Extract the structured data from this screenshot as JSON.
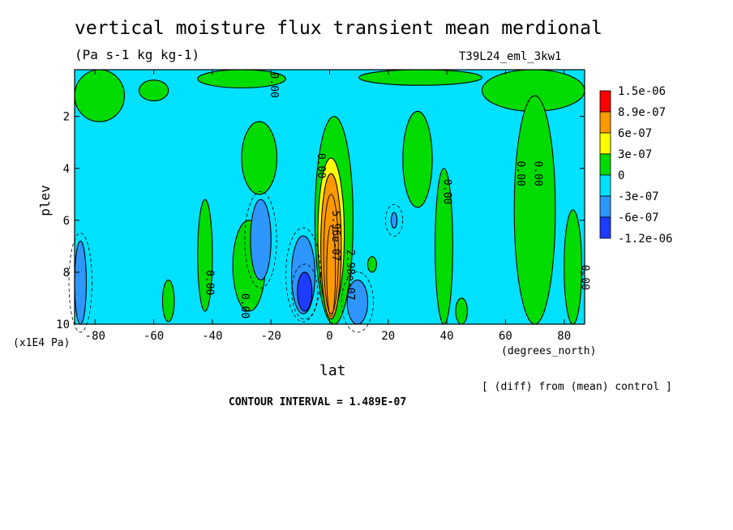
{
  "chart_data": {
    "type": "heatmap",
    "title": "vertical moisture flux transient mean merdional",
    "subtitle": "(Pa s-1 kg kg-1)",
    "run_id": "T39L24_eml_3kw1",
    "xlabel": "lat",
    "x_units": "(degrees_north)",
    "ylabel": "plev",
    "y_units": "(x1E4 Pa)",
    "x_ticks": [
      -80,
      -60,
      -40,
      -20,
      0,
      20,
      40,
      60,
      80
    ],
    "y_ticks": [
      2,
      4,
      6,
      8,
      10
    ],
    "xlim": [
      -87,
      87
    ],
    "ylim": [
      0.2,
      10
    ],
    "y_inverted": true,
    "note": "[ (diff) from (mean) control ]",
    "contour_interval": "CONTOUR INTERVAL = 1.489E-07",
    "legend": {
      "placement": "right",
      "labels": [
        "1.5e-06",
        "8.9e-07",
        "6e-07",
        "3e-07",
        "0",
        "-3e-07",
        "-6e-07",
        "-1.2e-06"
      ],
      "colors": [
        "#ff0000",
        "#ff9900",
        "#ffff00",
        "#00dc00",
        "#00e1ff",
        "#2d96ff",
        "#1e3cff"
      ]
    },
    "contour_labels": [
      "0.00",
      "0.00",
      "0.00",
      "0.00",
      "0.00",
      "0.00",
      "0.00",
      "0.00",
      "5.96e-07",
      "2.98e-07"
    ],
    "regions": [
      {
        "level": "green",
        "x": [
          -5,
          8
        ],
        "y": [
          2.0,
          10
        ]
      },
      {
        "level": "yellow",
        "x": [
          -4,
          5
        ],
        "y": [
          3.6,
          9.5
        ]
      },
      {
        "level": "orange",
        "x": [
          -3,
          4
        ],
        "y": [
          4.2,
          9.8
        ]
      },
      {
        "level": "green",
        "x": [
          -87,
          -70
        ],
        "y": [
          0.2,
          2.2
        ]
      },
      {
        "level": "green",
        "x": [
          -65,
          -55
        ],
        "y": [
          0.6,
          1.4
        ]
      },
      {
        "level": "green",
        "x": [
          -45,
          -15
        ],
        "y": [
          0.2,
          0.9
        ]
      },
      {
        "level": "green",
        "x": [
          -30,
          -18
        ],
        "y": [
          2.2,
          5.0
        ]
      },
      {
        "level": "green",
        "x": [
          -45,
          -40
        ],
        "y": [
          5.2,
          9.5
        ]
      },
      {
        "level": "green",
        "x": [
          -33,
          -22
        ],
        "y": [
          6.0,
          9.5
        ]
      },
      {
        "level": "green",
        "x": [
          -57,
          -53
        ],
        "y": [
          8.3,
          9.9
        ]
      },
      {
        "level": "green",
        "x": [
          10,
          52
        ],
        "y": [
          0.2,
          0.8
        ]
      },
      {
        "level": "green",
        "x": [
          25,
          35
        ],
        "y": [
          1.8,
          5.5
        ]
      },
      {
        "level": "green",
        "x": [
          36,
          42
        ],
        "y": [
          4.0,
          10
        ]
      },
      {
        "level": "green",
        "x": [
          43,
          47
        ],
        "y": [
          9.0,
          10
        ]
      },
      {
        "level": "green",
        "x": [
          52,
          87
        ],
        "y": [
          0.2,
          1.8
        ]
      },
      {
        "level": "green",
        "x": [
          63,
          77
        ],
        "y": [
          1.2,
          10
        ]
      },
      {
        "level": "green",
        "x": [
          80,
          86
        ],
        "y": [
          5.6,
          10
        ]
      },
      {
        "level": "green",
        "x": [
          13,
          16
        ],
        "y": [
          7.4,
          8.0
        ]
      },
      {
        "level": "blue",
        "x": [
          -27,
          -20
        ],
        "y": [
          5.2,
          8.3
        ]
      },
      {
        "level": "blue",
        "x": [
          -13,
          -5
        ],
        "y": [
          6.6,
          9.6
        ]
      },
      {
        "level": "blue",
        "x": [
          6,
          13
        ],
        "y": [
          8.3,
          10
        ]
      },
      {
        "level": "blue",
        "x": [
          -87,
          -83
        ],
        "y": [
          6.8,
          10
        ]
      },
      {
        "level": "blue",
        "x": [
          21,
          23
        ],
        "y": [
          5.7,
          6.3
        ]
      },
      {
        "level": "darkblue",
        "x": [
          -11,
          -6
        ],
        "y": [
          8.0,
          9.5
        ]
      }
    ]
  }
}
